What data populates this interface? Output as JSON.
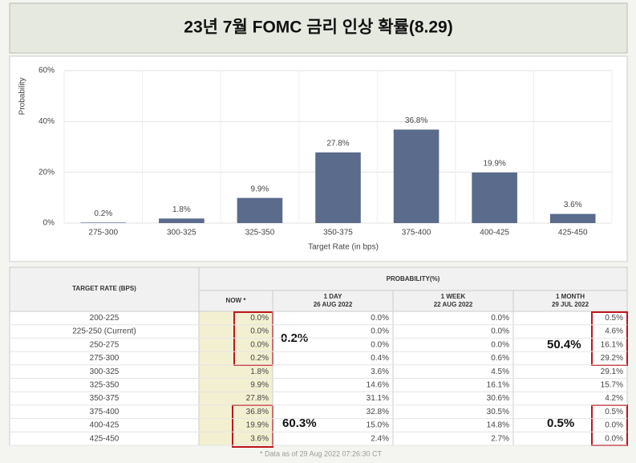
{
  "header": {
    "title": "23년 7월 FOMC 금리 인상 확률(8.29)"
  },
  "chart_data": {
    "type": "bar",
    "categories": [
      "275-300",
      "300-325",
      "325-350",
      "350-375",
      "375-400",
      "400-425",
      "425-450"
    ],
    "values": [
      0.2,
      1.8,
      9.9,
      27.8,
      36.8,
      19.9,
      3.6
    ],
    "value_labels": [
      "0.2%",
      "1.8%",
      "9.9%",
      "27.8%",
      "36.8%",
      "19.9%",
      "3.6%"
    ],
    "color": "#5a6b8c",
    "ylim": [
      0,
      60
    ],
    "yticks": [
      {
        "value": 0,
        "label": "0%"
      },
      {
        "value": 20,
        "label": "20%"
      },
      {
        "value": 40,
        "label": "40%"
      },
      {
        "value": 60,
        "label": "60%"
      }
    ],
    "grid": true,
    "y_label": "Probability",
    "x_label": "Target Rate (in bps)"
  },
  "table": {
    "row_header": "TARGET RATE (BPS)",
    "group_header": "PROBABILITY(%)",
    "columns": [
      {
        "title": "NOW *"
      },
      {
        "title": "1 DAY",
        "date": "26 AUG 2022"
      },
      {
        "title": "1 WEEK",
        "date": "22 AUG 2022"
      },
      {
        "title": "1 MONTH",
        "date": "29 JUL 2022"
      }
    ],
    "rows": [
      [
        "200-225",
        "0.0%",
        "0.0%",
        "0.0%",
        "0.5%"
      ],
      [
        "225-250 (Current)",
        "0.0%",
        "0.0%",
        "0.0%",
        "4.6%"
      ],
      [
        "250-275",
        "0.0%",
        "0.0%",
        "0.0%",
        "16.1%"
      ],
      [
        "275-300",
        "0.2%",
        "0.4%",
        "0.6%",
        "29.2%"
      ],
      [
        "300-325",
        "1.8%",
        "3.6%",
        "4.5%",
        "29.1%"
      ],
      [
        "325-350",
        "9.9%",
        "14.6%",
        "16.1%",
        "15.7%"
      ],
      [
        "350-375",
        "27.8%",
        "31.1%",
        "30.6%",
        "4.2%"
      ],
      [
        "375-400",
        "36.8%",
        "32.8%",
        "30.5%",
        "0.5%"
      ],
      [
        "400-425",
        "19.9%",
        "15.0%",
        "14.8%",
        "0.0%"
      ],
      [
        "425-450",
        "3.6%",
        "2.4%",
        "2.7%",
        "0.0%"
      ]
    ],
    "footnote": "* Data as of 29 Aug 2022 07:26:30 CT"
  },
  "annotations": [
    "0.2%",
    "60.3%",
    "50.4%",
    "0.5%"
  ]
}
